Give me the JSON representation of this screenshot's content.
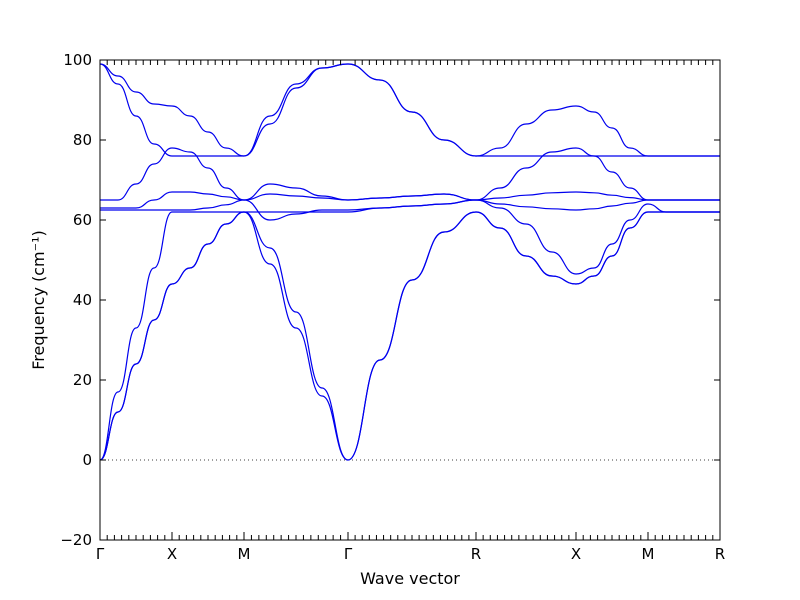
{
  "chart_data": {
    "type": "line",
    "title": "",
    "xlabel": "Wave vector",
    "ylabel": "Frequency (cm⁻¹)",
    "ylim": [
      -20,
      100
    ],
    "yticks": [
      -20,
      0,
      20,
      40,
      60,
      80,
      100
    ],
    "xlim": [
      0,
      3.1
    ],
    "k_points": [
      {
        "label": "Γ",
        "x": 0.0
      },
      {
        "label": "X",
        "x": 0.36
      },
      {
        "label": "M",
        "x": 0.72
      },
      {
        "label": "Γ",
        "x": 1.24
      },
      {
        "label": "R",
        "x": 1.88
      },
      {
        "label": "X",
        "x": 2.38
      },
      {
        "label": "M",
        "x": 2.74
      },
      {
        "label": "R",
        "x": 3.1
      }
    ],
    "zero_line": true,
    "line_color": "#0000ee",
    "series": [
      {
        "x": [
          0,
          0.09,
          0.18,
          0.27,
          0.36,
          0.45,
          0.54,
          0.63,
          0.72,
          0.85,
          0.98,
          1.11,
          1.24,
          1.4,
          1.56,
          1.72,
          1.88,
          2.0,
          2.13,
          2.26,
          2.38,
          2.47,
          2.56,
          2.65,
          2.74,
          2.83,
          2.92,
          3.01,
          3.1
        ],
        "y": [
          0,
          12,
          24,
          35,
          44,
          48,
          54,
          59,
          62,
          49,
          33,
          16,
          0,
          25,
          45,
          57,
          62,
          58,
          51,
          46,
          44,
          46,
          51,
          58,
          62,
          62,
          62,
          62,
          62
        ]
      },
      {
        "x": [
          0,
          0.09,
          0.18,
          0.27,
          0.36,
          0.45,
          0.54,
          0.63,
          0.72,
          0.85,
          0.98,
          1.11,
          1.24,
          1.4,
          1.56,
          1.72,
          1.88,
          2.0,
          2.13,
          2.26,
          2.38,
          2.47,
          2.56,
          2.65,
          2.74,
          2.83,
          2.92,
          3.01,
          3.1
        ],
        "y": [
          0,
          12,
          24,
          35,
          44,
          48,
          54,
          59,
          62,
          53,
          37,
          18,
          0,
          25,
          45,
          57,
          62,
          58,
          51,
          46,
          44,
          46,
          51,
          58,
          62,
          62,
          62,
          62,
          62
        ]
      },
      {
        "x": [
          0,
          0.09,
          0.18,
          0.27,
          0.36,
          0.45,
          0.54,
          0.63,
          0.72,
          0.85,
          0.98,
          1.11,
          1.24,
          1.4,
          1.56,
          1.72,
          1.88,
          2.0,
          2.13,
          2.26,
          2.38,
          2.47,
          2.56,
          2.65,
          2.74,
          2.83,
          2.92,
          3.01,
          3.1
        ],
        "y": [
          0,
          17,
          33,
          48,
          62,
          62,
          62,
          62,
          62,
          62,
          62,
          62,
          62,
          63,
          63.5,
          64,
          65,
          63,
          59,
          52,
          46.5,
          48,
          54,
          60,
          64,
          62,
          62,
          62,
          62
        ]
      },
      {
        "x": [
          0,
          0.09,
          0.18,
          0.27,
          0.36,
          0.45,
          0.54,
          0.63,
          0.72,
          0.85,
          0.98,
          1.11,
          1.24,
          1.4,
          1.56,
          1.72,
          1.88,
          2.0,
          2.13,
          2.26,
          2.38,
          2.47,
          2.56,
          2.65,
          2.74,
          2.83,
          2.92,
          3.01,
          3.1
        ],
        "y": [
          62.5,
          62.5,
          62.5,
          62.5,
          62.5,
          62.5,
          63,
          63.8,
          65,
          60,
          61.5,
          62.5,
          62.5,
          63,
          63.5,
          64,
          65,
          64,
          63.3,
          62.8,
          62.5,
          62.8,
          63.5,
          64.2,
          65,
          65,
          65,
          65,
          65
        ]
      },
      {
        "x": [
          0,
          0.09,
          0.18,
          0.27,
          0.36,
          0.45,
          0.54,
          0.63,
          0.72,
          0.85,
          0.98,
          1.11,
          1.24,
          1.4,
          1.56,
          1.72,
          1.88,
          2.0,
          2.13,
          2.26,
          2.38,
          2.47,
          2.56,
          2.65,
          2.74,
          2.83,
          2.92,
          3.01,
          3.1
        ],
        "y": [
          63,
          63,
          63,
          65,
          67,
          67,
          66.5,
          65.8,
          65,
          66.5,
          66,
          65.5,
          65,
          65.5,
          66,
          66.5,
          65,
          65.5,
          66.2,
          66.8,
          67,
          66.8,
          66.2,
          65.6,
          65,
          65,
          65,
          65,
          65
        ]
      },
      {
        "x": [
          0,
          0.09,
          0.18,
          0.27,
          0.36,
          0.45,
          0.54,
          0.63,
          0.72,
          0.85,
          0.98,
          1.11,
          1.24,
          1.4,
          1.56,
          1.72,
          1.88,
          2.0,
          2.13,
          2.26,
          2.38,
          2.47,
          2.56,
          2.65,
          2.74,
          2.83,
          2.92,
          3.01,
          3.1
        ],
        "y": [
          65,
          65,
          69,
          74,
          78,
          77,
          73,
          68,
          65,
          69,
          68,
          66,
          65,
          65.5,
          66,
          66.5,
          65,
          68,
          73,
          77,
          78,
          76,
          72,
          68,
          65,
          65,
          65,
          65,
          65
        ]
      },
      {
        "x": [
          0,
          0.09,
          0.18,
          0.27,
          0.36,
          0.45,
          0.54,
          0.63,
          0.72,
          0.85,
          0.98,
          1.11,
          1.24,
          1.4,
          1.56,
          1.72,
          1.88,
          2.0,
          2.13,
          2.26,
          2.38,
          2.47,
          2.56,
          2.65,
          2.74,
          2.83,
          2.92,
          3.01,
          3.1
        ],
        "y": [
          99,
          94,
          86,
          79,
          76,
          76,
          76,
          76,
          76,
          86,
          94,
          98,
          99,
          95,
          87,
          80,
          76,
          76,
          76,
          76,
          76,
          76,
          76,
          76,
          76,
          76,
          76,
          76,
          76
        ]
      },
      {
        "x": [
          0,
          0.09,
          0.18,
          0.27,
          0.36,
          0.45,
          0.54,
          0.63,
          0.72,
          0.85,
          0.98,
          1.11,
          1.24,
          1.4,
          1.56,
          1.72,
          1.88,
          2.0,
          2.13,
          2.26,
          2.38,
          2.47,
          2.56,
          2.65,
          2.74,
          2.83,
          2.92,
          3.01,
          3.1
        ],
        "y": [
          99,
          96,
          92,
          89,
          88.5,
          86,
          82,
          78,
          76,
          84,
          93,
          98,
          99,
          95,
          87,
          80,
          76,
          78,
          84,
          87.5,
          88.5,
          87,
          83,
          78,
          76,
          76,
          76,
          76,
          76
        ]
      }
    ]
  }
}
